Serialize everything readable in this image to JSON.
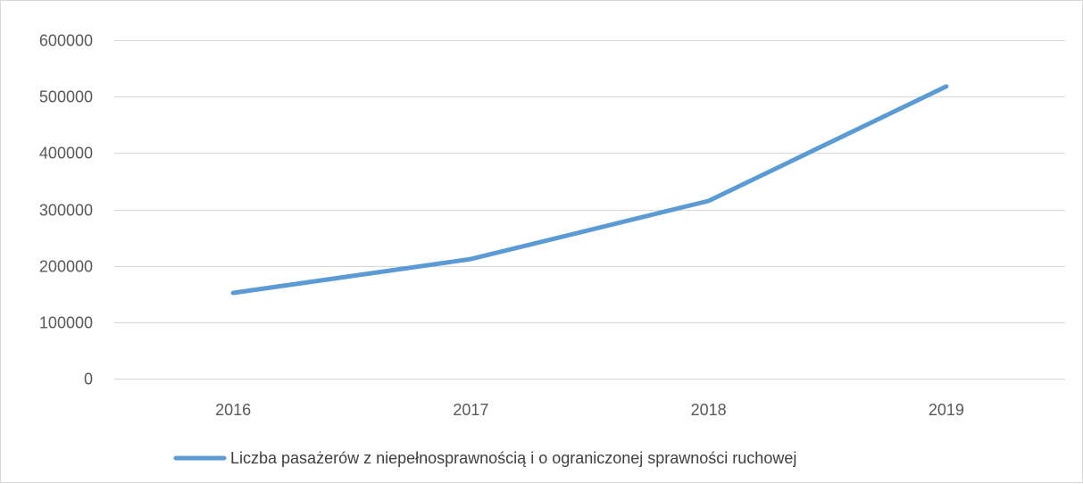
{
  "chart_data": {
    "type": "line",
    "title": "",
    "xlabel": "",
    "ylabel": "",
    "categories": [
      "2016",
      "2017",
      "2018",
      "2019"
    ],
    "series": [
      {
        "name": "Liczba pasażerów z niepełnosprawnością i o ograniczonej sprawności ruchowej",
        "values": [
          152000,
          212000,
          315000,
          518000
        ],
        "color": "#5b9bd5"
      }
    ],
    "ylim": [
      0,
      600000
    ],
    "y_ticks": [
      "0",
      "100000",
      "200000",
      "300000",
      "400000",
      "500000",
      "600000"
    ],
    "grid": "horizontal",
    "legend_position": "bottom",
    "colors": {
      "gridline": "#d9d9d9",
      "tick_text": "#595959",
      "legend_text": "#404040"
    }
  }
}
